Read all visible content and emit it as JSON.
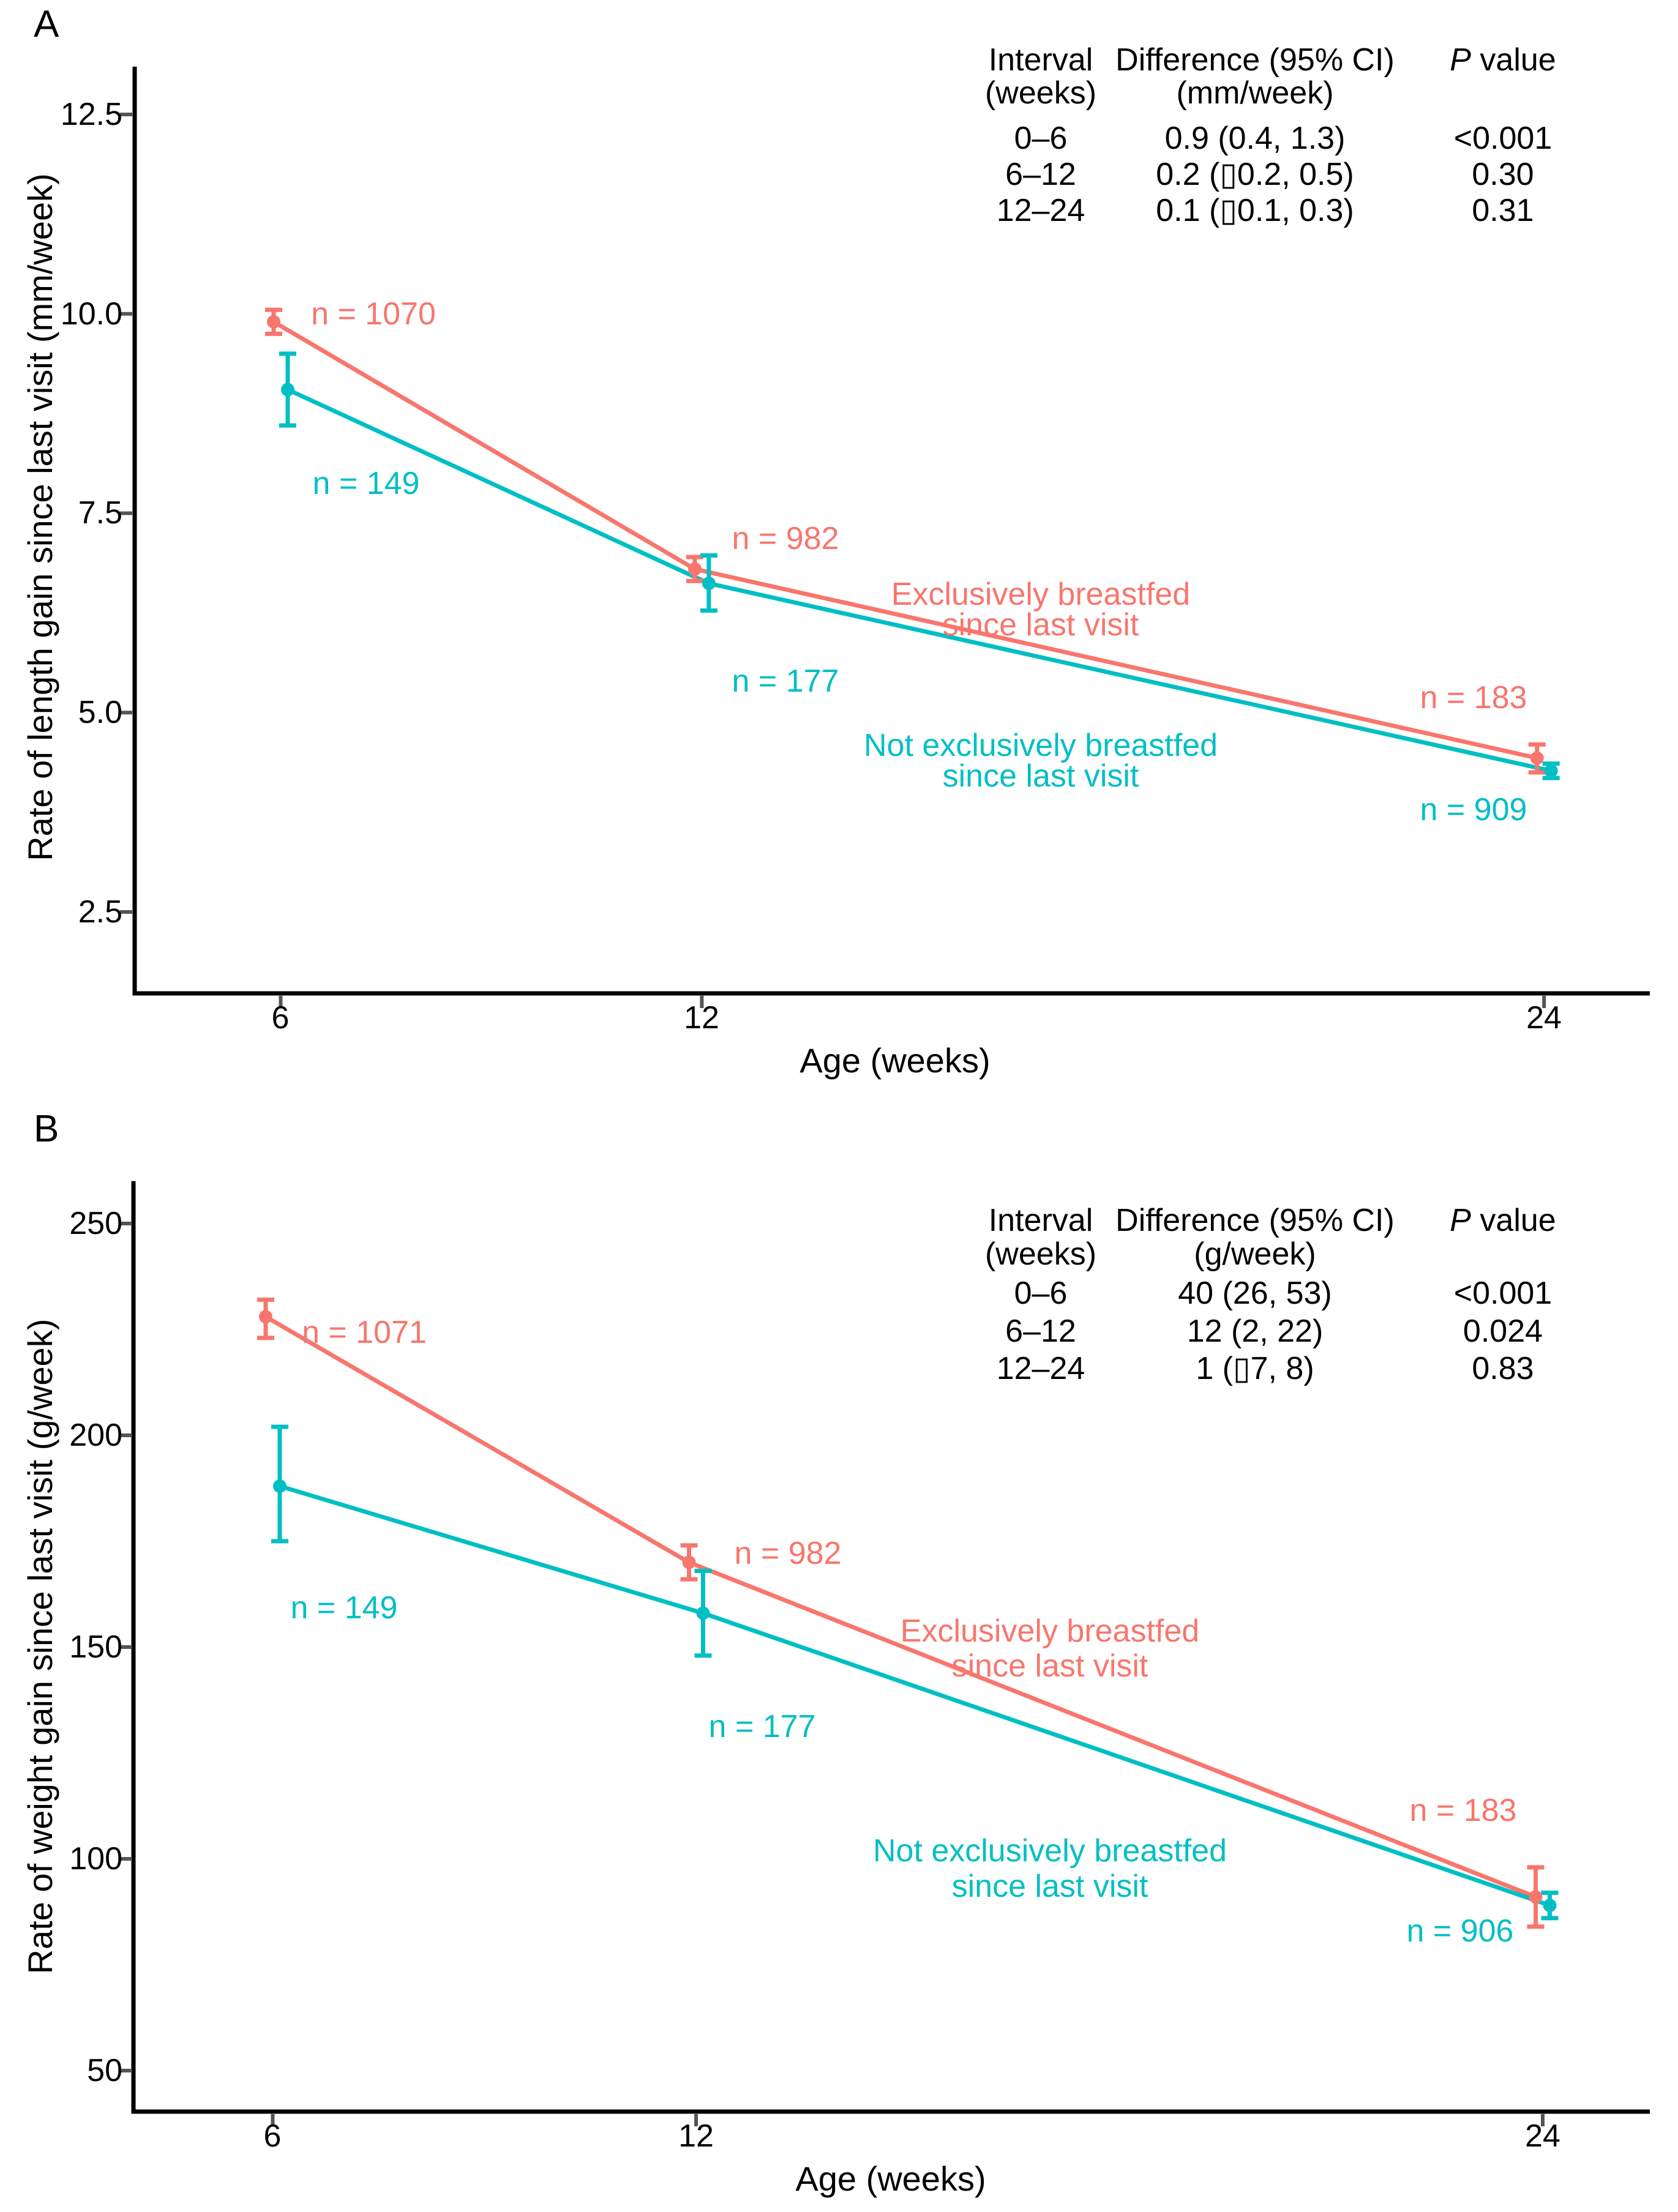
{
  "figure": {
    "panel_a_letter": "A",
    "panel_b_letter": "B"
  },
  "colors": {
    "exclusive": "#F8766D",
    "not_exclusive": "#00BFC4",
    "axis_line": "#000000",
    "tick_mark": "#555555"
  },
  "panelA": {
    "y_axis_title": "Rate of length gain since last visit (mm/week)",
    "x_axis_title": "Age (weeks)",
    "y_ticks": [
      "12.5",
      "10.0",
      "7.5",
      "5.0",
      "2.5"
    ],
    "x_ticks": [
      "6",
      "12",
      "24"
    ],
    "table": {
      "header": {
        "col1_line1": "Interval",
        "col1_line2": "(weeks)",
        "col2_line1": "Difference (95% CI)",
        "col2_line2": "(mm/week)",
        "col3_p": "P",
        "col3_rest": " value"
      },
      "rows": [
        {
          "interval": "0–6",
          "difference": "0.9 (0.4, 1.3)",
          "p": "<0.001"
        },
        {
          "interval": "6–12",
          "difference": "0.2 (▯0.2, 0.5)",
          "p": "0.30"
        },
        {
          "interval": "12–24",
          "difference": "0.1 (▯0.1, 0.3)",
          "p": "0.31"
        }
      ]
    },
    "labels": {
      "n_red_6": "n = 1070",
      "n_teal_6": "n = 149",
      "n_red_12": "n = 982",
      "n_teal_12": "n = 177",
      "n_red_24": "n = 183",
      "n_teal_24": "n = 909",
      "legend_red_line1": "Exclusively breastfed",
      "legend_red_line2": "since last visit",
      "legend_teal_line1": "Not exclusively breastfed",
      "legend_teal_line2": "since last visit"
    }
  },
  "panelB": {
    "y_axis_title": "Rate of weight gain since last visit (g/week)",
    "x_axis_title": "Age (weeks)",
    "y_ticks": [
      "250",
      "200",
      "150",
      "100",
      "50"
    ],
    "x_ticks": [
      "6",
      "12",
      "24"
    ],
    "table": {
      "header": {
        "col1_line1": "Interval",
        "col1_line2": "(weeks)",
        "col2_line1": "Difference (95% CI)",
        "col2_line2": "(g/week)",
        "col3_p": "P",
        "col3_rest": " value"
      },
      "rows": [
        {
          "interval": "0–6",
          "difference": "40 (26, 53)",
          "p": "<0.001"
        },
        {
          "interval": "6–12",
          "difference": "12 (2, 22)",
          "p": "0.024"
        },
        {
          "interval": "12–24",
          "difference": "1 (▯7, 8)",
          "p": "0.83"
        }
      ]
    },
    "labels": {
      "n_red_6": "n = 1071",
      "n_teal_6": "n = 149",
      "n_red_12": "n = 982",
      "n_teal_12": "n = 177",
      "n_red_24": "n = 183",
      "n_teal_24": "n = 906",
      "legend_red_line1": "Exclusively breastfed",
      "legend_red_line2": "since last visit",
      "legend_teal_line1": "Not exclusively breastfed",
      "legend_teal_line2": "since last visit"
    }
  },
  "chart_data": [
    {
      "panel": "A",
      "type": "line",
      "title": "",
      "xlabel": "Age (weeks)",
      "ylabel": "Rate of length gain since last visit (mm/week)",
      "x_ticks": [
        6,
        12,
        24
      ],
      "y_ticks": [
        2.5,
        5.0,
        7.5,
        10.0,
        12.5
      ],
      "xlim": [
        3.9,
        25.5
      ],
      "ylim": [
        1.5,
        13.1
      ],
      "grid": false,
      "legend_position": "annotated-inline",
      "series": [
        {
          "name": "Exclusively breastfed since last visit",
          "color": "#F8766D",
          "x": [
            6,
            12,
            24
          ],
          "y": [
            9.9,
            6.8,
            4.43
          ],
          "ci_low": [
            9.75,
            6.65,
            4.25
          ],
          "ci_high": [
            10.05,
            6.95,
            4.6
          ],
          "n": [
            1070,
            982,
            183
          ]
        },
        {
          "name": "Not exclusively breastfed since last visit",
          "color": "#00BFC4",
          "x": [
            6,
            12,
            24
          ],
          "y": [
            9.05,
            6.62,
            4.27
          ],
          "ci_low": [
            8.6,
            6.28,
            4.18
          ],
          "ci_high": [
            9.5,
            6.97,
            4.36
          ],
          "n": [
            149,
            177,
            909
          ]
        }
      ]
    },
    {
      "panel": "B",
      "type": "line",
      "title": "",
      "xlabel": "Age (weeks)",
      "ylabel": "Rate of weight gain since last visit (g/week)",
      "x_ticks": [
        6,
        12,
        24
      ],
      "y_ticks": [
        50,
        100,
        150,
        200,
        250
      ],
      "xlim": [
        4.0,
        25.5
      ],
      "ylim": [
        40,
        260
      ],
      "grid": false,
      "legend_position": "annotated-inline",
      "series": [
        {
          "name": "Exclusively breastfed since last visit",
          "color": "#F8766D",
          "x": [
            6,
            12,
            24
          ],
          "y": [
            228,
            170,
            91
          ],
          "ci_low": [
            223,
            166,
            84
          ],
          "ci_high": [
            232,
            174,
            98
          ],
          "n": [
            1071,
            982,
            183
          ]
        },
        {
          "name": "Not exclusively breastfed since last visit",
          "color": "#00BFC4",
          "x": [
            6,
            12,
            24
          ],
          "y": [
            188,
            158,
            89
          ],
          "ci_low": [
            175,
            148,
            86
          ],
          "ci_high": [
            202,
            168,
            92
          ],
          "n": [
            149,
            177,
            906
          ]
        }
      ]
    }
  ]
}
